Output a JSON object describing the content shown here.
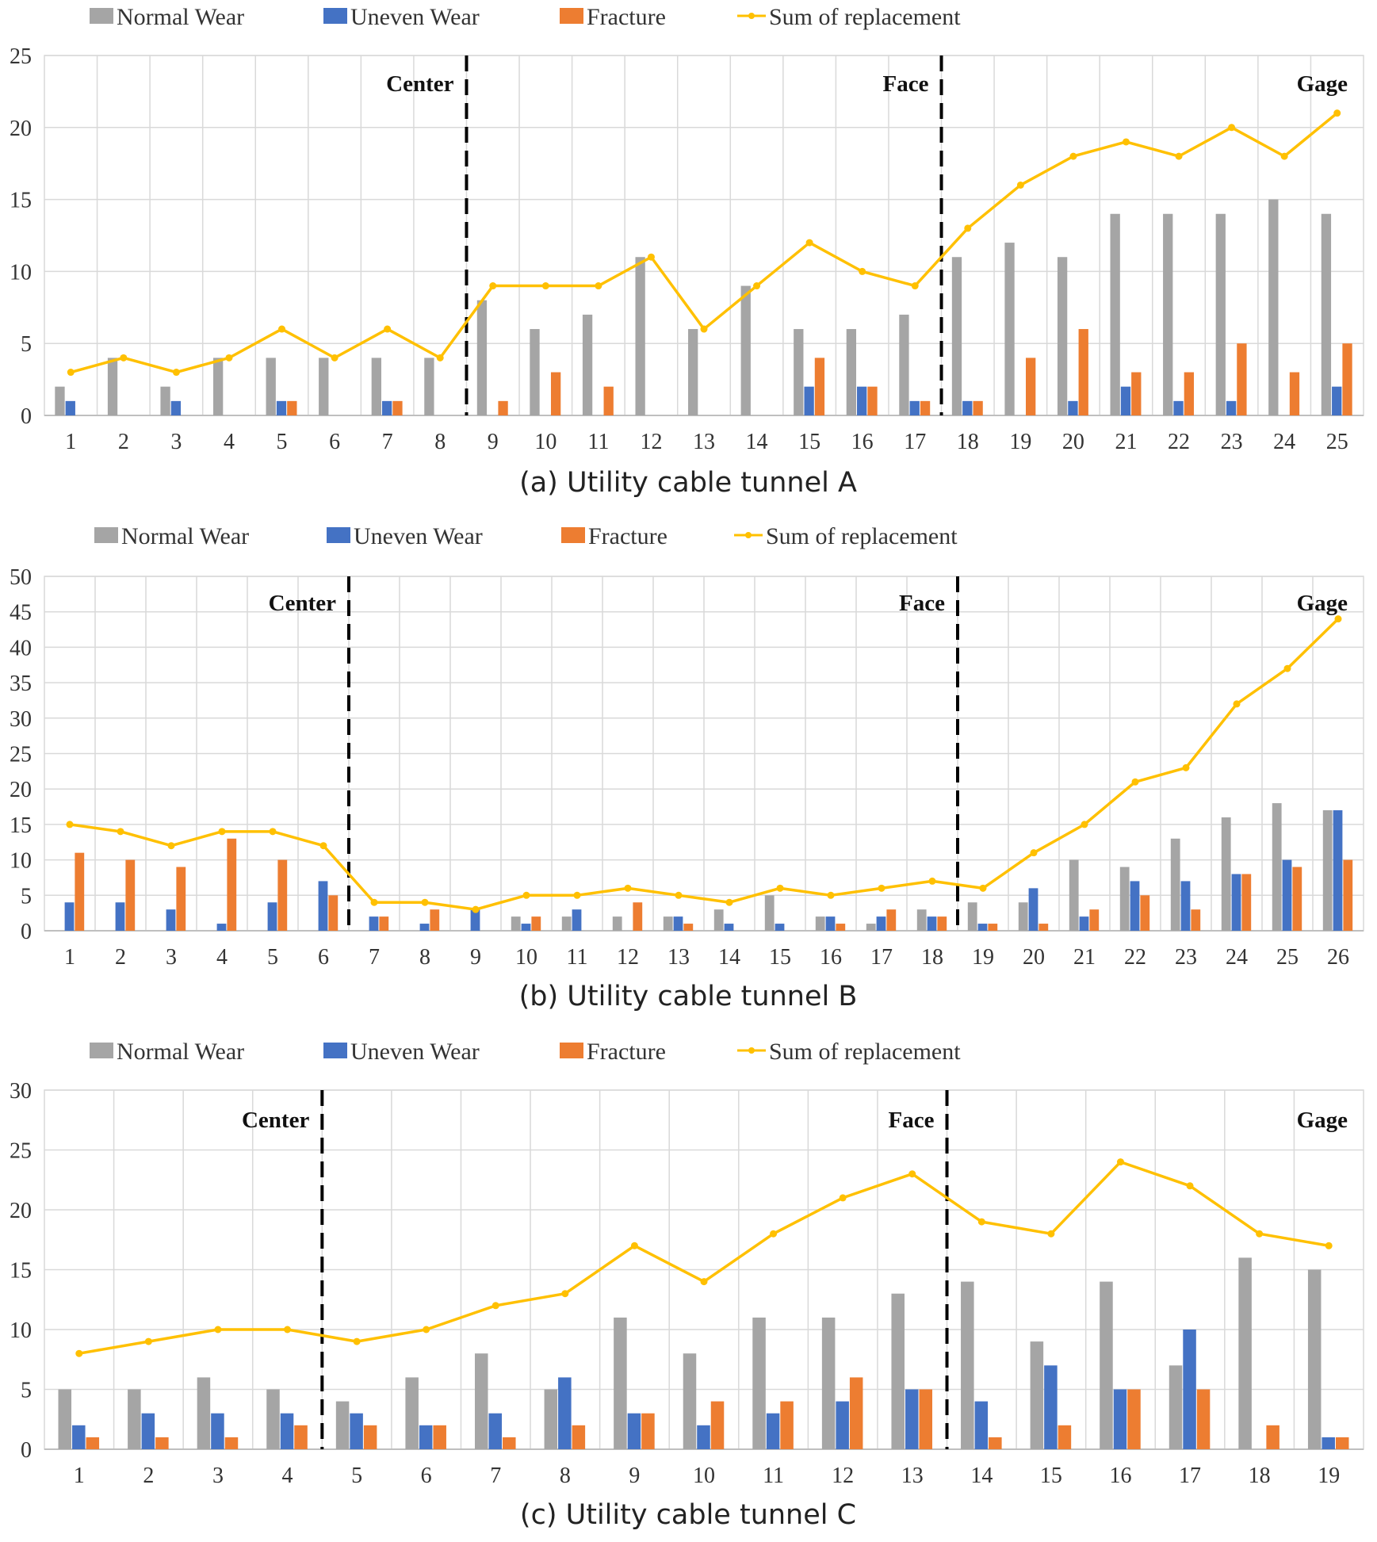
{
  "colors": {
    "normal_wear": "#A5A5A5",
    "uneven_wear": "#4472C4",
    "fracture": "#ED7D31",
    "sum": "#FFC000",
    "grid": "#D9D9D9",
    "divider": "#000000"
  },
  "chart_data": [
    {
      "type": "bar",
      "caption": "(a) Utility cable tunnel A",
      "legend": [
        "Normal Wear",
        "Uneven Wear",
        "Fracture",
        "Sum of replacement"
      ],
      "legend_position": "top",
      "grid": true,
      "categories": [
        "1",
        "2",
        "3",
        "4",
        "5",
        "6",
        "7",
        "8",
        "9",
        "10",
        "11",
        "12",
        "13",
        "14",
        "15",
        "16",
        "17",
        "18",
        "19",
        "20",
        "21",
        "22",
        "23",
        "24",
        "25"
      ],
      "ylim": [
        0,
        25
      ],
      "yticks": [
        0,
        5,
        10,
        15,
        20,
        25
      ],
      "series": [
        {
          "name": "Normal Wear",
          "kind": "bar",
          "values": [
            2,
            4,
            2,
            4,
            4,
            4,
            4,
            4,
            8,
            6,
            7,
            11,
            6,
            9,
            6,
            6,
            7,
            11,
            12,
            11,
            14,
            14,
            14,
            15,
            14
          ]
        },
        {
          "name": "Uneven Wear",
          "kind": "bar",
          "values": [
            1,
            0,
            1,
            0,
            1,
            0,
            1,
            0,
            0,
            0,
            0,
            0,
            0,
            0,
            2,
            2,
            1,
            1,
            0,
            1,
            2,
            1,
            1,
            0,
            2
          ]
        },
        {
          "name": "Fracture",
          "kind": "bar",
          "values": [
            0,
            0,
            0,
            0,
            1,
            0,
            1,
            0,
            1,
            3,
            2,
            0,
            0,
            0,
            4,
            2,
            1,
            1,
            4,
            6,
            3,
            3,
            5,
            3,
            5
          ]
        },
        {
          "name": "Sum of replacement",
          "kind": "line",
          "values": [
            3,
            4,
            3,
            4,
            6,
            4,
            6,
            4,
            9,
            9,
            9,
            11,
            6,
            9,
            12,
            10,
            9,
            13,
            16,
            18,
            19,
            18,
            20,
            18,
            21
          ]
        }
      ],
      "zones": [
        {
          "label": "Center",
          "divider_after": 8
        },
        {
          "label": "Face",
          "divider_after": 17
        },
        {
          "label": "Gage",
          "divider_after": null
        }
      ]
    },
    {
      "type": "bar",
      "caption": "(b) Utility cable tunnel B",
      "legend": [
        "Normal Wear",
        "Uneven Wear",
        "Fracture",
        "Sum of replacement"
      ],
      "legend_position": "top",
      "grid": true,
      "categories": [
        "1",
        "2",
        "3",
        "4",
        "5",
        "6",
        "7",
        "8",
        "9",
        "10",
        "11",
        "12",
        "13",
        "14",
        "15",
        "16",
        "17",
        "18",
        "19",
        "20",
        "21",
        "22",
        "23",
        "24",
        "25",
        "26"
      ],
      "ylim": [
        0,
        50
      ],
      "yticks": [
        0,
        5,
        10,
        15,
        20,
        25,
        30,
        35,
        40,
        45,
        50
      ],
      "series": [
        {
          "name": "Normal Wear",
          "kind": "bar",
          "values": [
            0,
            0,
            0,
            0,
            0,
            0,
            0,
            0,
            0,
            2,
            2,
            2,
            2,
            3,
            5,
            2,
            1,
            3,
            4,
            4,
            10,
            9,
            13,
            16,
            18,
            17
          ]
        },
        {
          "name": "Uneven Wear",
          "kind": "bar",
          "values": [
            4,
            4,
            3,
            1,
            4,
            7,
            2,
            1,
            3,
            1,
            3,
            0,
            2,
            1,
            1,
            2,
            2,
            2,
            1,
            6,
            2,
            7,
            7,
            8,
            10,
            17
          ]
        },
        {
          "name": "Fracture",
          "kind": "bar",
          "values": [
            11,
            10,
            9,
            13,
            10,
            5,
            2,
            3,
            0,
            2,
            0,
            4,
            1,
            0,
            0,
            1,
            3,
            2,
            1,
            1,
            3,
            5,
            3,
            8,
            9,
            10
          ]
        },
        {
          "name": "Sum of replacement",
          "kind": "line",
          "values": [
            15,
            14,
            12,
            14,
            14,
            12,
            4,
            4,
            3,
            5,
            5,
            6,
            5,
            4,
            6,
            5,
            6,
            7,
            6,
            11,
            15,
            21,
            23,
            32,
            37,
            44
          ]
        }
      ],
      "zones": [
        {
          "label": "Center",
          "divider_after": 6
        },
        {
          "label": "Face",
          "divider_after": 18
        },
        {
          "label": "Gage",
          "divider_after": null
        }
      ]
    },
    {
      "type": "bar",
      "caption": "(c) Utility cable tunnel C",
      "legend": [
        "Normal Wear",
        "Uneven Wear",
        "Fracture",
        "Sum of replacement"
      ],
      "legend_position": "top",
      "grid": true,
      "categories": [
        "1",
        "2",
        "3",
        "4",
        "5",
        "6",
        "7",
        "8",
        "9",
        "10",
        "11",
        "12",
        "13",
        "14",
        "15",
        "16",
        "17",
        "18",
        "19"
      ],
      "ylim": [
        0,
        30
      ],
      "yticks": [
        0,
        5,
        10,
        15,
        20,
        25,
        30
      ],
      "series": [
        {
          "name": "Normal Wear",
          "kind": "bar",
          "values": [
            5,
            5,
            6,
            5,
            4,
            6,
            8,
            5,
            11,
            8,
            11,
            11,
            13,
            14,
            9,
            14,
            7,
            16,
            15
          ]
        },
        {
          "name": "Uneven Wear",
          "kind": "bar",
          "values": [
            2,
            3,
            3,
            3,
            3,
            2,
            3,
            6,
            3,
            2,
            3,
            4,
            5,
            4,
            7,
            5,
            10,
            0,
            1
          ]
        },
        {
          "name": "Fracture",
          "kind": "bar",
          "values": [
            1,
            1,
            1,
            2,
            2,
            2,
            1,
            2,
            3,
            4,
            4,
            6,
            5,
            1,
            2,
            5,
            5,
            2,
            1
          ]
        },
        {
          "name": "Sum of replacement",
          "kind": "line",
          "values": [
            8,
            9,
            10,
            10,
            9,
            10,
            12,
            13,
            17,
            14,
            18,
            21,
            23,
            19,
            18,
            24,
            22,
            18,
            17
          ]
        }
      ],
      "zones": [
        {
          "label": "Center",
          "divider_after": 4
        },
        {
          "label": "Face",
          "divider_after": 13
        },
        {
          "label": "Gage",
          "divider_after": null
        }
      ]
    }
  ]
}
